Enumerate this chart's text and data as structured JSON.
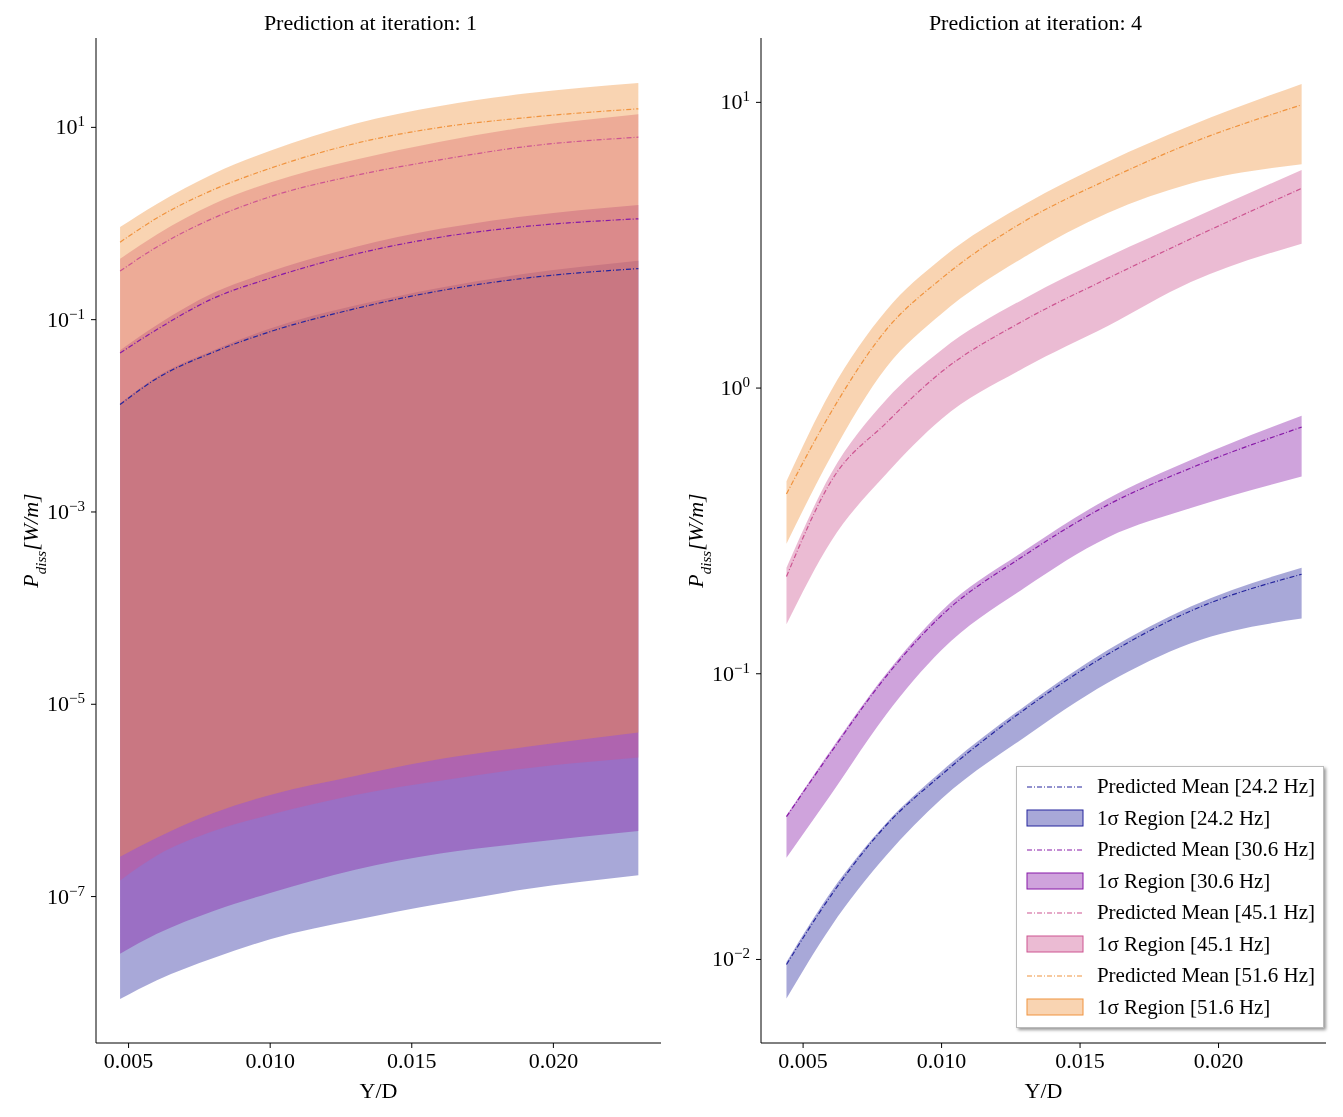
{
  "chart_data": [
    {
      "type": "line",
      "title": "Prediction at iteration: 1",
      "xlabel": "Y/D",
      "ylabel": "P$_{diss}$[W/m]",
      "log": "y",
      "legend": false,
      "x": [
        0.0047,
        0.006,
        0.008,
        0.01,
        0.013,
        0.016,
        0.019,
        0.023
      ],
      "xlim": [
        0.00385,
        0.0238
      ],
      "xticks": [
        {
          "value": 0.005,
          "label": "0.005"
        },
        {
          "value": 0.01,
          "label": "0.010"
        },
        {
          "value": 0.015,
          "label": "0.015"
        },
        {
          "value": 0.02,
          "label": "0.020"
        }
      ],
      "ylim": [
        3e-09,
        85
      ],
      "yticks": [
        {
          "value": 1e-07,
          "label": "10$^{−7}$"
        },
        {
          "value": 1e-05,
          "label": "10$^{−5}$"
        },
        {
          "value": 0.001,
          "label": "10$^{−3}$"
        },
        {
          "value": 0.1,
          "label": "10$^{−1}$"
        },
        {
          "value": 10,
          "label": "10$^{1}$"
        }
      ],
      "series": [
        {
          "color": "#25259d",
          "line_style": "dashed",
          "values": [
            0.0131,
            0.0245,
            0.046,
            0.075,
            0.13,
            0.2,
            0.27,
            0.34
          ],
          "lower": [
            8.6e-09,
            1.35e-08,
            2.3e-08,
            3.6e-08,
            5.7e-08,
            8.4e-08,
            1.19e-07,
            1.67e-07
          ],
          "upper": [
            0.0135,
            0.0255,
            0.048,
            0.081,
            0.14,
            0.215,
            0.3,
            0.41
          ]
        },
        {
          "color": "#8719a7",
          "line_style": "dashed",
          "values": [
            0.045,
            0.079,
            0.167,
            0.27,
            0.48,
            0.72,
            0.93,
            1.12
          ],
          "lower": [
            2.55e-08,
            4.1e-08,
            7.1e-08,
            1.09e-07,
            1.9e-07,
            2.8e-07,
            3.6e-07,
            4.8e-07
          ],
          "upper": [
            0.048,
            0.088,
            0.19,
            0.316,
            0.57,
            0.88,
            1.19,
            1.56
          ]
        },
        {
          "color": "#cd5591",
          "line_style": "dashed",
          "values": [
            0.32,
            0.57,
            1.14,
            1.9,
            3.16,
            4.6,
            6.3,
            7.9
          ],
          "lower": [
            1.47e-07,
            2.67e-07,
            4.8e-07,
            7.1e-07,
            1.14e-06,
            1.6e-06,
            2.15e-06,
            2.8e-06
          ],
          "upper": [
            0.43,
            0.77,
            1.6,
            2.67,
            4.6,
            7.1,
            10,
            13.7
          ]
        },
        {
          "color": "#f0933e",
          "line_style": "dashed",
          "values": [
            0.64,
            1.14,
            2.25,
            3.75,
            6.8,
            10,
            12.6,
            15.6
          ],
          "lower": [
            2.6e-07,
            4.1e-07,
            7.4e-07,
            1.14e-06,
            1.8e-06,
            2.7e-06,
            3.6e-06,
            5.1e-06
          ],
          "upper": [
            0.92,
            1.6,
            3.3,
            5.7,
            10.9,
            16.7,
            22.5,
            29
          ]
        }
      ]
    },
    {
      "type": "line",
      "title": "Prediction at iteration: 4",
      "xlabel": "Y/D",
      "ylabel": "P$_{diss}$[W/m]",
      "log": "y",
      "legend": "bottom right",
      "annotations": [
        "1σ Region [24.2 Hz]",
        "1σ Region [30.6 Hz]",
        "1σ Region [45.1 Hz]",
        "1σ Region [51.6 Hz]"
      ],
      "x": [
        0.0044,
        0.006,
        0.008,
        0.01,
        0.013,
        0.016,
        0.019,
        0.023
      ],
      "xlim": [
        0.00348,
        0.02388
      ],
      "xticks": [
        {
          "value": 0.005,
          "label": "0.005"
        },
        {
          "value": 0.01,
          "label": "0.010"
        },
        {
          "value": 0.015,
          "label": "0.015"
        },
        {
          "value": 0.02,
          "label": "0.020"
        }
      ],
      "ylim": [
        0.0051,
        16.8
      ],
      "yticks": [
        {
          "value": 0.01,
          "label": "10$^{−2}$"
        },
        {
          "value": 0.1,
          "label": "10$^{−1}$"
        },
        {
          "value": 1,
          "label": "10$^{0}$"
        },
        {
          "value": 10,
          "label": "10$^{1}$"
        }
      ],
      "series": [
        {
          "name": "Predicted Mean [24.2 Hz]",
          "color": "#25259d",
          "line_style": "dashed",
          "values": [
            0.0096,
            0.0167,
            0.0295,
            0.0443,
            0.075,
            0.117,
            0.166,
            0.223
          ],
          "lower": [
            0.0073,
            0.013,
            0.0231,
            0.0365,
            0.06,
            0.093,
            0.128,
            0.156
          ],
          "upper": [
            0.0098,
            0.0172,
            0.03,
            0.0456,
            0.077,
            0.121,
            0.172,
            0.235
          ]
        },
        {
          "name": "Predicted Mean [30.6 Hz]",
          "color": "#8719a7",
          "line_style": "dashed",
          "values": [
            0.0316,
            0.053,
            0.098,
            0.16,
            0.26,
            0.39,
            0.525,
            0.73
          ],
          "lower": [
            0.0227,
            0.0377,
            0.072,
            0.121,
            0.2,
            0.3,
            0.38,
            0.49
          ],
          "upper": [
            0.032,
            0.054,
            0.1,
            0.166,
            0.27,
            0.41,
            0.56,
            0.8
          ]
        },
        {
          "name": "Predicted Mean [45.1 Hz]",
          "color": "#cd5591",
          "line_style": "dashed",
          "values": [
            0.219,
            0.47,
            0.755,
            1.14,
            1.73,
            2.42,
            3.33,
            5.0
          ],
          "lower": [
            0.149,
            0.29,
            0.5,
            0.78,
            1.18,
            1.65,
            2.35,
            3.2
          ],
          "upper": [
            0.235,
            0.5,
            0.91,
            1.36,
            2.06,
            2.88,
            3.9,
            5.8
          ]
        },
        {
          "name": "Predicted Mean [51.6 Hz]",
          "color": "#f0933e",
          "line_style": "dashed",
          "values": [
            0.426,
            0.82,
            1.6,
            2.42,
            3.84,
            5.37,
            7.2,
            9.8
          ],
          "lower": [
            0.285,
            0.575,
            1.18,
            1.82,
            2.88,
            4.1,
            5.2,
            6.07
          ],
          "upper": [
            0.472,
            0.975,
            1.87,
            2.84,
            4.4,
            6.2,
            8.3,
            11.6
          ]
        }
      ]
    }
  ]
}
